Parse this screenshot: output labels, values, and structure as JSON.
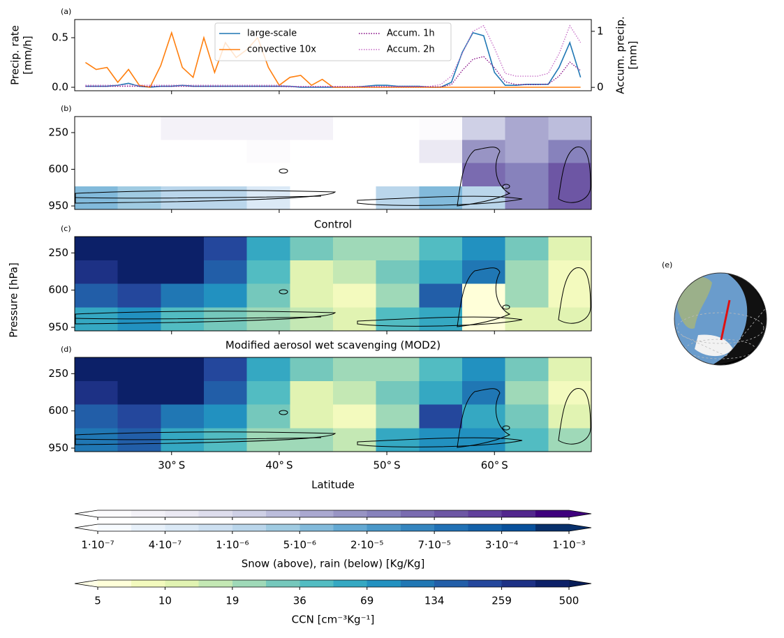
{
  "figure": {
    "ylabel": "Pressure [hPa]",
    "xlabel": "Latitude",
    "globe_label": "(e)"
  },
  "chart_data": [
    {
      "type": "line",
      "panel_label": "(a)",
      "ylabel": [
        "Precip. rate",
        "[mm/h]"
      ],
      "y2label": [
        "Accum. precip.",
        "[mm]"
      ],
      "x": [
        22,
        23,
        24,
        25,
        26,
        27,
        28,
        29,
        30,
        31,
        32,
        33,
        34,
        35,
        36,
        37,
        38,
        39,
        40,
        41,
        42,
        43,
        44,
        45,
        46,
        47,
        48,
        49,
        50,
        51,
        52,
        53,
        54,
        55,
        56,
        57,
        58,
        59,
        60,
        61,
        62,
        63,
        64,
        65,
        66,
        67,
        68
      ],
      "xlim": [
        21,
        69
      ],
      "xticks": [
        30,
        40,
        50,
        60
      ],
      "ylim": [
        -0.035,
        0.683
      ],
      "yticks": [
        {
          "value": 0,
          "label": "0.0"
        },
        {
          "value": 0.5,
          "label": "0.5"
        }
      ],
      "y2lim": [
        -0.06,
        1.21
      ],
      "y2ticks": [
        0,
        1
      ],
      "legend": {
        "loc": "upper center",
        "ncol": 2
      },
      "series": [
        {
          "name": "large-scale",
          "color": "#1f77b4",
          "linestyle": "solid",
          "values": [
            0.01,
            0.01,
            0.01,
            0.02,
            0.04,
            0.01,
            0,
            0.01,
            0.01,
            0.02,
            0.01,
            0.01,
            0.01,
            0.01,
            0.01,
            0.01,
            0.01,
            0.01,
            0.01,
            0.01,
            0,
            0,
            0,
            0,
            0,
            0,
            0.01,
            0.02,
            0.02,
            0.01,
            0.01,
            0.01,
            0,
            0,
            0.05,
            0.35,
            0.55,
            0.52,
            0.15,
            0.02,
            0.02,
            0.03,
            0.03,
            0.03,
            0.2,
            0.45,
            0.1
          ]
        },
        {
          "name": "convective 10x",
          "color": "#ff7f0e",
          "linestyle": "solid",
          "values": [
            0.25,
            0.18,
            0.2,
            0.05,
            0.18,
            0.02,
            0,
            0.22,
            0.55,
            0.2,
            0.1,
            0.5,
            0.15,
            0.45,
            0.3,
            0.38,
            0.5,
            0.2,
            0.02,
            0.1,
            0.12,
            0.02,
            0.08,
            0,
            0,
            0,
            0,
            0,
            0,
            0,
            0,
            0,
            0,
            0,
            0,
            0,
            0,
            0,
            0,
            0,
            0,
            0,
            0,
            0,
            0,
            0,
            0
          ]
        },
        {
          "name": "Accum. 1h",
          "color": "#800080",
          "linestyle": "dotted",
          "axis": "y2",
          "values": [
            0.02,
            0.02,
            0.02,
            0.02,
            0.02,
            0.02,
            0.02,
            0.02,
            0.02,
            0.02,
            0.02,
            0.02,
            0.02,
            0.02,
            0.02,
            0.02,
            0.02,
            0.02,
            0.02,
            0.01,
            0.01,
            0.01,
            0.01,
            0.01,
            0.01,
            0.01,
            0.01,
            0.01,
            0.01,
            0.01,
            0.01,
            0.01,
            0.01,
            0.01,
            0.05,
            0.3,
            0.5,
            0.55,
            0.35,
            0.1,
            0.05,
            0.05,
            0.05,
            0.06,
            0.2,
            0.45,
            0.3
          ]
        },
        {
          "name": "Accum. 2h",
          "color": "#c466c4",
          "linestyle": "dotted",
          "axis": "y2",
          "values": [
            0.04,
            0.04,
            0.04,
            0.04,
            0.04,
            0.04,
            0.04,
            0.04,
            0.04,
            0.04,
            0.04,
            0.04,
            0.04,
            0.04,
            0.04,
            0.04,
            0.04,
            0.04,
            0.04,
            0.02,
            0.02,
            0.02,
            0.02,
            0.02,
            0.02,
            0.02,
            0.02,
            0.02,
            0.02,
            0.02,
            0.02,
            0.02,
            0.02,
            0.05,
            0.2,
            0.6,
            1.0,
            1.1,
            0.7,
            0.25,
            0.2,
            0.2,
            0.2,
            0.25,
            0.6,
            1.1,
            0.8
          ]
        }
      ]
    },
    {
      "type": "heatmap",
      "panel_label": "(b)",
      "x": [
        23,
        27,
        31,
        35,
        39,
        43,
        47,
        51,
        55,
        59,
        63,
        67
      ],
      "y": [
        208,
        430,
        652,
        874
      ],
      "xlim": [
        21,
        69
      ],
      "ylim": [
        983,
        97
      ],
      "xticks": [
        30,
        40,
        50,
        60
      ],
      "yticks": [
        250,
        600,
        950
      ],
      "fields": [
        {
          "cmap": "Purples",
          "z": [
            [
              null,
              null,
              2e-07,
              3e-07,
              2e-07,
              2e-07,
              null,
              null,
              1e-07,
              2e-06,
              5e-06,
              3e-06
            ],
            [
              null,
              null,
              null,
              null,
              1e-07,
              null,
              null,
              null,
              5e-07,
              1e-05,
              5e-06,
              2e-05
            ],
            [
              null,
              null,
              null,
              null,
              null,
              null,
              null,
              null,
              null,
              5e-05,
              2e-05,
              8e-05
            ],
            [
              null,
              null,
              null,
              null,
              null,
              null,
              null,
              null,
              null,
              0.0001,
              3e-05,
              0.0001
            ]
          ]
        },
        {
          "cmap": "Blues",
          "z": [
            [
              null,
              null,
              null,
              null,
              null,
              null,
              null,
              null,
              null,
              null,
              null,
              null
            ],
            [
              null,
              null,
              null,
              null,
              null,
              null,
              null,
              null,
              null,
              null,
              null,
              null
            ],
            [
              null,
              null,
              null,
              null,
              null,
              null,
              null,
              null,
              null,
              null,
              null,
              null
            ],
            [
              5e-06,
              3e-06,
              1e-06,
              1e-06,
              5e-07,
              null,
              null,
              1e-06,
              5e-06,
              2e-06,
              null,
              null
            ]
          ]
        }
      ]
    },
    {
      "type": "heatmap",
      "panel_label": "(c)",
      "title": "Control",
      "x": [
        23,
        27,
        31,
        35,
        39,
        43,
        47,
        51,
        55,
        59,
        63,
        67
      ],
      "y": [
        208,
        430,
        652,
        874
      ],
      "xlim": [
        21,
        69
      ],
      "ylim": [
        983,
        97
      ],
      "xticks": [
        30,
        40,
        50,
        60
      ],
      "yticks": [
        250,
        600,
        950
      ],
      "fields": [
        {
          "cmap": "YlGnBu",
          "z": [
            [
              500,
              500,
              400,
              200,
              60,
              30,
              20,
              20,
              40,
              80,
              30,
              10
            ],
            [
              300,
              400,
              500,
              150,
              40,
              10,
              15,
              30,
              60,
              100,
              20,
              8
            ],
            [
              150,
              200,
              120,
              80,
              30,
              10,
              8,
              20,
              150,
              6,
              20,
              8
            ],
            [
              60,
              80,
              40,
              30,
              20,
              15,
              10,
              40,
              60,
              6,
              10,
              10
            ]
          ]
        }
      ]
    },
    {
      "type": "heatmap",
      "panel_label": "(d)",
      "title": "Modified aerosol wet scavenging (MOD2)",
      "x": [
        23,
        27,
        31,
        35,
        39,
        43,
        47,
        51,
        55,
        59,
        63,
        67
      ],
      "y": [
        208,
        430,
        652,
        874
      ],
      "xlim": [
        21,
        69
      ],
      "ylim": [
        983,
        97
      ],
      "xticks": [
        {
          "value": 30,
          "label": "30$^\\circ$S"
        },
        {
          "value": 40,
          "label": "40$^\\circ$S"
        },
        {
          "value": 50,
          "label": "50$^\\circ$S"
        },
        {
          "value": 60,
          "label": "60$^\\circ$S"
        }
      ],
      "yticks": [
        250,
        600,
        950
      ],
      "fields": [
        {
          "cmap": "YlGnBu",
          "z": [
            [
              500,
              500,
              400,
              200,
              60,
              30,
              20,
              20,
              40,
              80,
              30,
              10
            ],
            [
              300,
              400,
              500,
              150,
              40,
              10,
              15,
              30,
              60,
              100,
              20,
              8
            ],
            [
              150,
              200,
              120,
              80,
              30,
              10,
              8,
              20,
              200,
              60,
              30,
              10
            ],
            [
              100,
              150,
              60,
              40,
              25,
              20,
              15,
              50,
              80,
              70,
              40,
              20
            ]
          ]
        }
      ]
    }
  ],
  "colorbars": [
    {
      "cmap": "Purples",
      "ticklabels": false,
      "colors": [
        "#fcfbfd",
        "#f4f2f8",
        "#ebe9f3",
        "#dedded",
        "#cfd0e6",
        "#bcbddc",
        "#aaa8d0",
        "#9894c4",
        "#8782bc",
        "#7a6bb0",
        "#6d56a4",
        "#61409b",
        "#52268d",
        "#3f007d"
      ],
      "under": "#ffffff",
      "over": "#3f007d",
      "ticks": [
        1e-07,
        4e-07,
        1e-06,
        5e-06,
        2e-05,
        7e-05,
        0.0003,
        0.001
      ]
    },
    {
      "cmap": "Blues",
      "ticklabels": true,
      "label": "Snow (above), rain (below) [Kg/Kg]",
      "colors": [
        "#f7fbff",
        "#e8f1fa",
        "#dbe9f6",
        "#cde0f1",
        "#bad6eb",
        "#a0cbe2",
        "#82badb",
        "#64a9d3",
        "#4a98c9",
        "#3585bf",
        "#2171b5",
        "#1361a9",
        "#08509b",
        "#08306b"
      ],
      "under": "#ffffff",
      "over": "#08306b",
      "ticks": [
        {
          "value": 1e-07,
          "label": "1·10⁻⁷"
        },
        {
          "value": 4e-07,
          "label": "4·10⁻⁷"
        },
        {
          "value": 1e-06,
          "label": "1·10⁻⁶"
        },
        {
          "value": 5e-06,
          "label": "5·10⁻⁶"
        },
        {
          "value": 2e-05,
          "label": "2·10⁻⁵"
        },
        {
          "value": 7e-05,
          "label": "7·10⁻⁵"
        },
        {
          "value": 0.0003,
          "label": "3·10⁻⁴"
        },
        {
          "value": 0.001,
          "label": "1·10⁻³"
        }
      ]
    },
    {
      "cmap": "YlGnBu",
      "ticklabels": true,
      "label": "CCN [cm⁻³Kg⁻¹]",
      "colors": [
        "#ffffd9",
        "#f3fabe",
        "#e1f3b2",
        "#c4e8b4",
        "#9fd9b8",
        "#75c8bc",
        "#52bcc2",
        "#35a8c2",
        "#2291c0",
        "#2077b4",
        "#225ea8",
        "#24479c",
        "#1d3185",
        "#0c2068"
      ],
      "under": "#ffffe5",
      "over": "#081d58",
      "ticks": [
        5,
        10,
        19,
        36,
        69,
        134,
        259,
        500
      ]
    }
  ]
}
